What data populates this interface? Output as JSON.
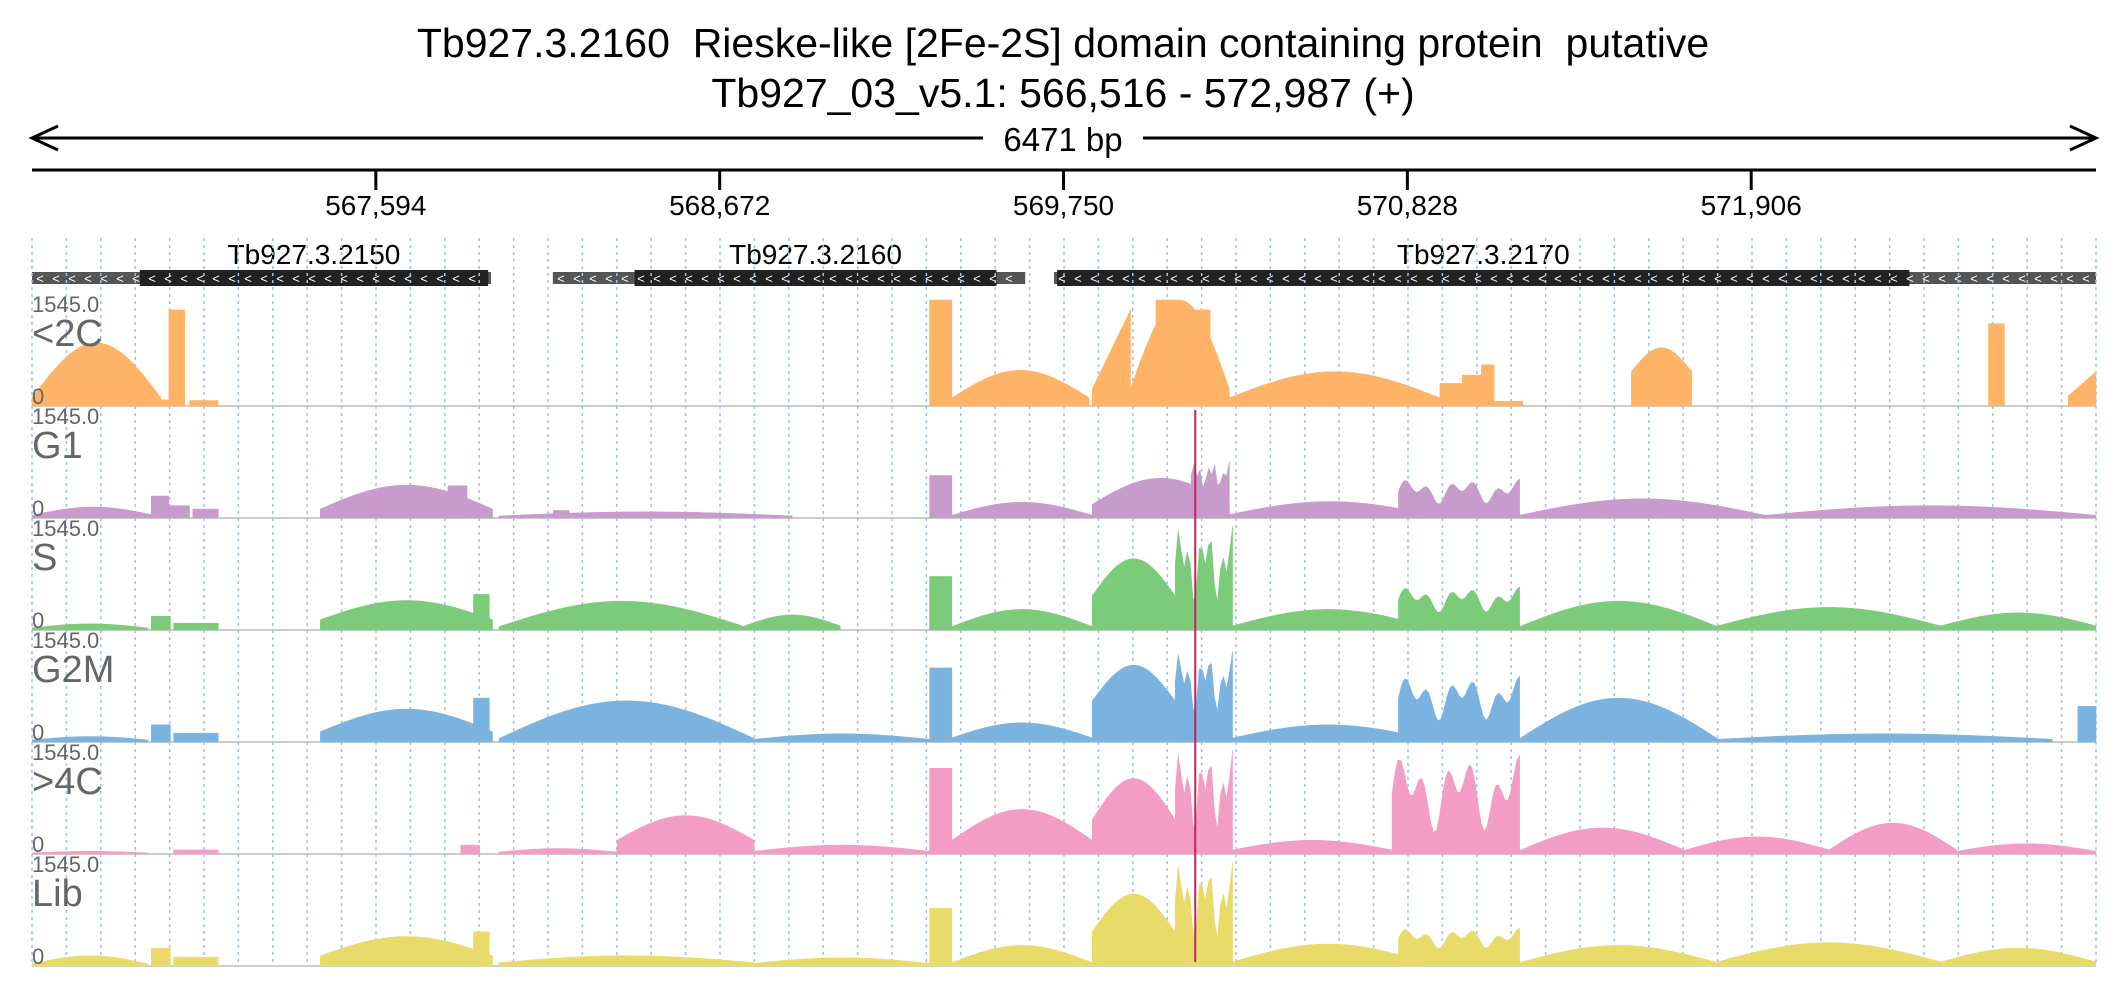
{
  "header": {
    "title": "Tb927.3.2160  Rieske-like [2Fe-2S] domain containing protein  putative",
    "location": "Tb927_03_v5.1: 566,516 - 572,987 (+)",
    "span_label": "6471 bp"
  },
  "chart_data": {
    "type": "area",
    "chromosome": "Tb927_03_v5.1",
    "x_range": [
      566516,
      572987
    ],
    "ticks": [
      {
        "pos": 567594,
        "label": "567,594"
      },
      {
        "pos": 568672,
        "label": "568,672"
      },
      {
        "pos": 569750,
        "label": "569,750"
      },
      {
        "pos": 570828,
        "label": "570,828"
      },
      {
        "pos": 571906,
        "label": "571,906"
      }
    ],
    "genes": [
      {
        "name": "Tb927.3.2150",
        "strand": "-",
        "start": 566516,
        "end": 567955,
        "cds_start": 566854,
        "cds_end": 567946
      },
      {
        "name": "Tb927.3.2160",
        "strand": "-",
        "start": 568149,
        "end": 569630,
        "cds_start": 568405,
        "cds_end": 569540
      },
      {
        "name": "Tb927.3.2170",
        "strand": "-",
        "start": 569720,
        "end": 572987,
        "cds_start": 569730,
        "cds_end": 572402
      }
    ],
    "ylim": [
      0,
      1545.0
    ],
    "y_max_label": "1545.0",
    "y_min_label": "0",
    "series": [
      {
        "name": "<2C",
        "color": "#FFB366",
        "segments": [
          {
            "x0": 566516,
            "x1": 566920,
            "shape": "hump",
            "low": 120,
            "peak": 920
          },
          {
            "x0": 566920,
            "x1": 566945,
            "shape": "flat",
            "low": 90,
            "peak": 90
          },
          {
            "x0": 566945,
            "x1": 566995,
            "shape": "flat",
            "low": 1400,
            "peak": 1400
          },
          {
            "x0": 567010,
            "x1": 567100,
            "shape": "flat",
            "low": 80,
            "peak": 80
          },
          {
            "x0": 569330,
            "x1": 569400,
            "shape": "flat",
            "low": 1545,
            "peak": 1545
          },
          {
            "x0": 569400,
            "x1": 569830,
            "shape": "hump",
            "low": 120,
            "peak": 520
          },
          {
            "x0": 569840,
            "x1": 569960,
            "shape": "ramp",
            "low": 250,
            "peak": 1400
          },
          {
            "x0": 569960,
            "x1": 570270,
            "shape": "hump",
            "low": 250,
            "peak": 1545
          },
          {
            "x0": 570040,
            "x1": 570110,
            "shape": "flat",
            "low": 1545,
            "peak": 1545
          },
          {
            "x0": 570110,
            "x1": 570210,
            "shape": "flat",
            "low": 1400,
            "peak": 1400
          },
          {
            "x0": 570270,
            "x1": 570930,
            "shape": "hump",
            "low": 120,
            "peak": 500
          },
          {
            "x0": 570930,
            "x1": 571000,
            "shape": "flat",
            "low": 330,
            "peak": 330
          },
          {
            "x0": 571000,
            "x1": 571060,
            "shape": "flat",
            "low": 450,
            "peak": 450
          },
          {
            "x0": 571060,
            "x1": 571100,
            "shape": "flat",
            "low": 600,
            "peak": 600
          },
          {
            "x0": 571100,
            "x1": 571190,
            "shape": "flat",
            "low": 70,
            "peak": 70
          },
          {
            "x0": 571530,
            "x1": 571720,
            "shape": "hump",
            "low": 500,
            "peak": 850
          },
          {
            "x0": 572650,
            "x1": 572700,
            "shape": "flat",
            "low": 1200,
            "peak": 1200
          },
          {
            "x0": 572900,
            "x1": 572987,
            "shape": "ramp",
            "low": 150,
            "peak": 500
          }
        ]
      },
      {
        "name": "G1",
        "color": "#C79BCB",
        "segments": [
          {
            "x0": 566516,
            "x1": 566900,
            "shape": "hump",
            "low": 40,
            "peak": 160
          },
          {
            "x0": 566890,
            "x1": 566945,
            "shape": "flat",
            "low": 320,
            "peak": 320
          },
          {
            "x0": 566945,
            "x1": 567010,
            "shape": "flat",
            "low": 180,
            "peak": 180
          },
          {
            "x0": 567020,
            "x1": 567100,
            "shape": "flat",
            "low": 130,
            "peak": 130
          },
          {
            "x0": 567420,
            "x1": 567960,
            "shape": "hump",
            "low": 130,
            "peak": 480
          },
          {
            "x0": 567820,
            "x1": 567880,
            "shape": "flat",
            "low": 470,
            "peak": 470
          },
          {
            "x0": 567980,
            "x1": 568900,
            "shape": "hump",
            "low": 30,
            "peak": 90
          },
          {
            "x0": 568150,
            "x1": 568200,
            "shape": "flat",
            "low": 110,
            "peak": 110
          },
          {
            "x0": 569330,
            "x1": 569400,
            "shape": "flat",
            "low": 620,
            "peak": 620
          },
          {
            "x0": 569400,
            "x1": 569840,
            "shape": "hump",
            "low": 40,
            "peak": 230
          },
          {
            "x0": 569840,
            "x1": 570270,
            "shape": "hump",
            "low": 200,
            "peak": 580
          },
          {
            "x0": 570150,
            "x1": 570270,
            "shape": "spiky",
            "low": 400,
            "peak": 840
          },
          {
            "x0": 570270,
            "x1": 570900,
            "shape": "hump",
            "low": 50,
            "peak": 240
          },
          {
            "x0": 570800,
            "x1": 571180,
            "shape": "spiky",
            "low": 200,
            "peak": 580
          },
          {
            "x0": 571180,
            "x1": 571950,
            "shape": "hump",
            "low": 40,
            "peak": 280
          },
          {
            "x0": 571950,
            "x1": 572987,
            "shape": "hump",
            "low": 40,
            "peak": 180
          }
        ]
      },
      {
        "name": "S",
        "color": "#7CCB7A",
        "segments": [
          {
            "x0": 566516,
            "x1": 566880,
            "shape": "hump",
            "low": 30,
            "peak": 90
          },
          {
            "x0": 566890,
            "x1": 566950,
            "shape": "flat",
            "low": 200,
            "peak": 200
          },
          {
            "x0": 566960,
            "x1": 567100,
            "shape": "flat",
            "low": 100,
            "peak": 100
          },
          {
            "x0": 567420,
            "x1": 567960,
            "shape": "hump",
            "low": 150,
            "peak": 430
          },
          {
            "x0": 567900,
            "x1": 567950,
            "shape": "flat",
            "low": 520,
            "peak": 520
          },
          {
            "x0": 567980,
            "x1": 568750,
            "shape": "hump",
            "low": 50,
            "peak": 420
          },
          {
            "x0": 568750,
            "x1": 569050,
            "shape": "hump",
            "low": 60,
            "peak": 220
          },
          {
            "x0": 569330,
            "x1": 569400,
            "shape": "flat",
            "low": 780,
            "peak": 780
          },
          {
            "x0": 569400,
            "x1": 569840,
            "shape": "hump",
            "low": 50,
            "peak": 300
          },
          {
            "x0": 569840,
            "x1": 570100,
            "shape": "hump",
            "low": 500,
            "peak": 1040
          },
          {
            "x0": 570100,
            "x1": 570280,
            "shape": "spiky",
            "low": 350,
            "peak": 1545
          },
          {
            "x0": 570280,
            "x1": 570880,
            "shape": "hump",
            "low": 60,
            "peak": 300
          },
          {
            "x0": 570800,
            "x1": 571180,
            "shape": "spiky",
            "low": 250,
            "peak": 640
          },
          {
            "x0": 571180,
            "x1": 571800,
            "shape": "hump",
            "low": 50,
            "peak": 420
          },
          {
            "x0": 571800,
            "x1": 572500,
            "shape": "hump",
            "low": 60,
            "peak": 330
          },
          {
            "x0": 572500,
            "x1": 572987,
            "shape": "hump",
            "low": 60,
            "peak": 250
          }
        ]
      },
      {
        "name": "G2M",
        "color": "#7BB3E0",
        "segments": [
          {
            "x0": 566516,
            "x1": 566880,
            "shape": "hump",
            "low": 30,
            "peak": 80
          },
          {
            "x0": 566890,
            "x1": 566950,
            "shape": "flat",
            "low": 250,
            "peak": 250
          },
          {
            "x0": 566960,
            "x1": 567100,
            "shape": "flat",
            "low": 130,
            "peak": 130
          },
          {
            "x0": 567420,
            "x1": 567960,
            "shape": "hump",
            "low": 150,
            "peak": 480
          },
          {
            "x0": 567900,
            "x1": 567950,
            "shape": "flat",
            "low": 640,
            "peak": 640
          },
          {
            "x0": 567980,
            "x1": 568780,
            "shape": "hump",
            "low": 50,
            "peak": 600
          },
          {
            "x0": 568780,
            "x1": 569330,
            "shape": "hump",
            "low": 40,
            "peak": 120
          },
          {
            "x0": 569330,
            "x1": 569400,
            "shape": "flat",
            "low": 1080,
            "peak": 1080
          },
          {
            "x0": 569400,
            "x1": 569840,
            "shape": "hump",
            "low": 60,
            "peak": 280
          },
          {
            "x0": 569840,
            "x1": 570100,
            "shape": "hump",
            "low": 600,
            "peak": 1120
          },
          {
            "x0": 570100,
            "x1": 570280,
            "shape": "spiky",
            "low": 400,
            "peak": 1350
          },
          {
            "x0": 570280,
            "x1": 570880,
            "shape": "hump",
            "low": 60,
            "peak": 250
          },
          {
            "x0": 570800,
            "x1": 571180,
            "shape": "spiky",
            "low": 300,
            "peak": 980
          },
          {
            "x0": 571180,
            "x1": 571800,
            "shape": "hump",
            "low": 50,
            "peak": 640
          },
          {
            "x0": 571800,
            "x1": 572850,
            "shape": "hump",
            "low": 40,
            "peak": 120
          },
          {
            "x0": 572930,
            "x1": 572987,
            "shape": "flat",
            "low": 520,
            "peak": 520
          }
        ]
      },
      {
        "name": ">4C",
        "color": "#F39DC6",
        "segments": [
          {
            "x0": 566516,
            "x1": 566880,
            "shape": "hump",
            "low": 15,
            "peak": 40
          },
          {
            "x0": 566960,
            "x1": 567100,
            "shape": "flat",
            "low": 60,
            "peak": 60
          },
          {
            "x0": 567860,
            "x1": 567920,
            "shape": "flat",
            "low": 130,
            "peak": 130
          },
          {
            "x0": 567980,
            "x1": 568350,
            "shape": "hump",
            "low": 30,
            "peak": 80
          },
          {
            "x0": 568350,
            "x1": 568780,
            "shape": "hump",
            "low": 200,
            "peak": 560
          },
          {
            "x0": 568780,
            "x1": 569330,
            "shape": "hump",
            "low": 40,
            "peak": 130
          },
          {
            "x0": 569330,
            "x1": 569400,
            "shape": "flat",
            "low": 1250,
            "peak": 1250
          },
          {
            "x0": 569400,
            "x1": 569840,
            "shape": "hump",
            "low": 200,
            "peak": 650
          },
          {
            "x0": 569840,
            "x1": 570100,
            "shape": "hump",
            "low": 500,
            "peak": 1100
          },
          {
            "x0": 570100,
            "x1": 570280,
            "shape": "spiky",
            "low": 300,
            "peak": 1545
          },
          {
            "x0": 570280,
            "x1": 570780,
            "shape": "hump",
            "low": 60,
            "peak": 200
          },
          {
            "x0": 570780,
            "x1": 571180,
            "shape": "spiky",
            "low": 300,
            "peak": 1480
          },
          {
            "x0": 571180,
            "x1": 571700,
            "shape": "hump",
            "low": 50,
            "peak": 380
          },
          {
            "x0": 571700,
            "x1": 572150,
            "shape": "hump",
            "low": 60,
            "peak": 250
          },
          {
            "x0": 572150,
            "x1": 572550,
            "shape": "hump",
            "low": 60,
            "peak": 450
          },
          {
            "x0": 572550,
            "x1": 572987,
            "shape": "hump",
            "low": 40,
            "peak": 150
          }
        ]
      },
      {
        "name": "Lib",
        "color": "#E8DB6A",
        "segments": [
          {
            "x0": 566516,
            "x1": 566880,
            "shape": "hump",
            "low": 30,
            "peak": 150
          },
          {
            "x0": 566890,
            "x1": 566950,
            "shape": "flat",
            "low": 260,
            "peak": 260
          },
          {
            "x0": 566960,
            "x1": 567100,
            "shape": "flat",
            "low": 130,
            "peak": 130
          },
          {
            "x0": 567420,
            "x1": 567960,
            "shape": "hump",
            "low": 150,
            "peak": 430
          },
          {
            "x0": 567900,
            "x1": 567950,
            "shape": "flat",
            "low": 500,
            "peak": 500
          },
          {
            "x0": 567980,
            "x1": 568780,
            "shape": "hump",
            "low": 50,
            "peak": 150
          },
          {
            "x0": 568780,
            "x1": 569330,
            "shape": "hump",
            "low": 40,
            "peak": 120
          },
          {
            "x0": 569330,
            "x1": 569400,
            "shape": "flat",
            "low": 840,
            "peak": 840
          },
          {
            "x0": 569400,
            "x1": 569840,
            "shape": "hump",
            "low": 50,
            "peak": 300
          },
          {
            "x0": 569840,
            "x1": 570100,
            "shape": "hump",
            "low": 500,
            "peak": 1050
          },
          {
            "x0": 570100,
            "x1": 570280,
            "shape": "spiky",
            "low": 350,
            "peak": 1545
          },
          {
            "x0": 570280,
            "x1": 570880,
            "shape": "hump",
            "low": 60,
            "peak": 320
          },
          {
            "x0": 570800,
            "x1": 571180,
            "shape": "spiky",
            "low": 250,
            "peak": 560
          },
          {
            "x0": 571180,
            "x1": 571800,
            "shape": "hump",
            "low": 50,
            "peak": 300
          },
          {
            "x0": 571800,
            "x1": 572500,
            "shape": "hump",
            "low": 60,
            "peak": 340
          },
          {
            "x0": 572500,
            "x1": 572987,
            "shape": "hump",
            "low": 60,
            "peak": 260
          }
        ]
      }
    ]
  },
  "colors": {
    "background": "#ffffff",
    "gene_exon": "#222222",
    "gene_utr": "#555555",
    "track_label": "#666666",
    "grid": "#9cc3e6",
    "separator": "#bbbbbb",
    "peak_marker": "#c0245c"
  }
}
